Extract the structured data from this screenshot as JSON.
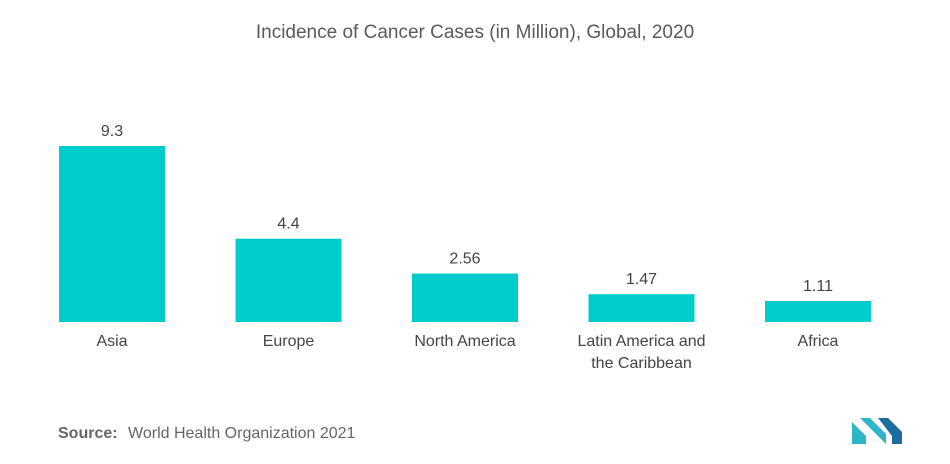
{
  "chart_data": {
    "type": "bar",
    "title": "Incidence of Cancer Cases (in Million), Global, 2020",
    "categories": [
      "Asia",
      "Europe",
      "North America",
      "Latin America and the Caribbean",
      "Africa"
    ],
    "category_lines": [
      [
        "Asia"
      ],
      [
        "Europe"
      ],
      [
        "North America"
      ],
      [
        "Latin America and",
        "the Caribbean"
      ],
      [
        "Africa"
      ]
    ],
    "values": [
      9.3,
      4.4,
      2.56,
      1.47,
      1.11
    ],
    "value_labels": [
      "9.3",
      "4.4",
      "2.56",
      "1.47",
      "1.11"
    ],
    "xlabel": "",
    "ylabel": "",
    "ylim": [
      0,
      9.3
    ],
    "grid": false,
    "colors": {
      "bar": "#00cccc"
    }
  },
  "source": {
    "label": "Source:",
    "text": "World Health Organization 2021"
  },
  "logo": {
    "icon": "mordor-logo-icon",
    "colors": [
      "#2fb5c8",
      "#1a6fa0"
    ]
  }
}
